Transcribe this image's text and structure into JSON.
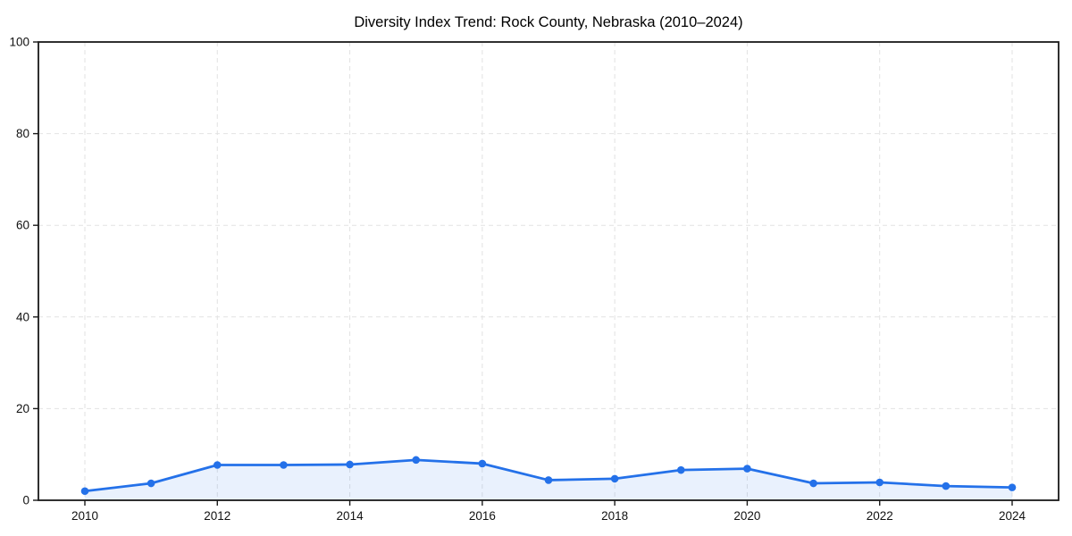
{
  "page": {
    "background_color": "#FFFFFF"
  },
  "chart_data": {
    "type": "line",
    "title": "Diversity Index Trend: Rock County, Nebraska (2010–2024)",
    "x": [
      2010,
      2011,
      2012,
      2013,
      2014,
      2015,
      2016,
      2017,
      2018,
      2019,
      2020,
      2021,
      2022,
      2023,
      2024
    ],
    "series": [
      {
        "name": "Diversity Index",
        "values": [
          2.0,
          3.7,
          7.7,
          7.7,
          7.8,
          8.8,
          8.0,
          4.4,
          4.7,
          6.6,
          6.9,
          3.7,
          3.9,
          3.1,
          2.8
        ]
      }
    ],
    "xlabel": "",
    "ylabel": "",
    "ylim": [
      0,
      100
    ],
    "yticks": [
      0,
      20,
      40,
      60,
      80,
      100
    ],
    "xticks": [
      2010,
      2012,
      2014,
      2016,
      2018,
      2020,
      2022,
      2024
    ],
    "grid": "dashed",
    "legend_position": "none",
    "area_fill": true,
    "colors": {
      "line": "#2471E9",
      "marker": "#2471E9",
      "fill": "rgba(36,113,233,0.10)",
      "grid": "#E2E2E2",
      "spine": "#1A1A1A",
      "tick": "#1A1A1A",
      "text": "#111111"
    }
  }
}
